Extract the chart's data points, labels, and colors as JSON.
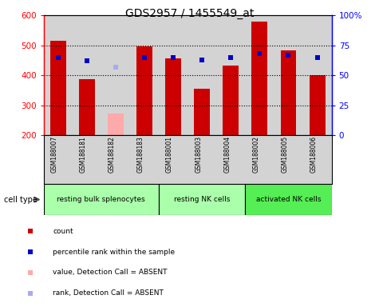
{
  "title": "GDS2957 / 1455549_at",
  "samples": [
    "GSM188007",
    "GSM188181",
    "GSM188182",
    "GSM188183",
    "GSM188001",
    "GSM188003",
    "GSM188004",
    "GSM188002",
    "GSM188005",
    "GSM188006"
  ],
  "counts": [
    515,
    388,
    null,
    496,
    457,
    354,
    432,
    580,
    482,
    401
  ],
  "absent_values": [
    null,
    null,
    271,
    null,
    null,
    null,
    null,
    null,
    null,
    null
  ],
  "percentile_ranks": [
    65,
    62,
    null,
    65,
    65,
    63,
    65,
    68,
    67,
    65
  ],
  "absent_ranks": [
    null,
    null,
    57,
    null,
    null,
    null,
    null,
    null,
    null,
    null
  ],
  "ylim": [
    200,
    600
  ],
  "y2lim": [
    0,
    100
  ],
  "yticks": [
    200,
    300,
    400,
    500,
    600
  ],
  "y2ticks": [
    0,
    25,
    50,
    75,
    100
  ],
  "y2labels": [
    "0",
    "25",
    "50",
    "75",
    "100%"
  ],
  "dotted_lines": [
    300,
    400,
    500
  ],
  "bar_color_present": "#cc0000",
  "bar_color_absent": "#ffaaaa",
  "rank_color_present": "#0000cc",
  "rank_color_absent": "#aaaaee",
  "bar_width": 0.55,
  "rank_marker_size": 5,
  "col_bg_color": "#d3d3d3",
  "cell_groups": [
    {
      "label": "resting bulk splenocytes",
      "start": 0,
      "end": 3,
      "color": "#aaffaa"
    },
    {
      "label": "resting NK cells",
      "start": 4,
      "end": 6,
      "color": "#aaffaa"
    },
    {
      "label": "activated NK cells",
      "start": 7,
      "end": 9,
      "color": "#55ee55"
    }
  ],
  "legend_items": [
    {
      "color": "#cc0000",
      "label": "count"
    },
    {
      "color": "#0000cc",
      "label": "percentile rank within the sample"
    },
    {
      "color": "#ffaaaa",
      "label": "value, Detection Call = ABSENT"
    },
    {
      "color": "#aaaaee",
      "label": "rank, Detection Call = ABSENT"
    }
  ]
}
